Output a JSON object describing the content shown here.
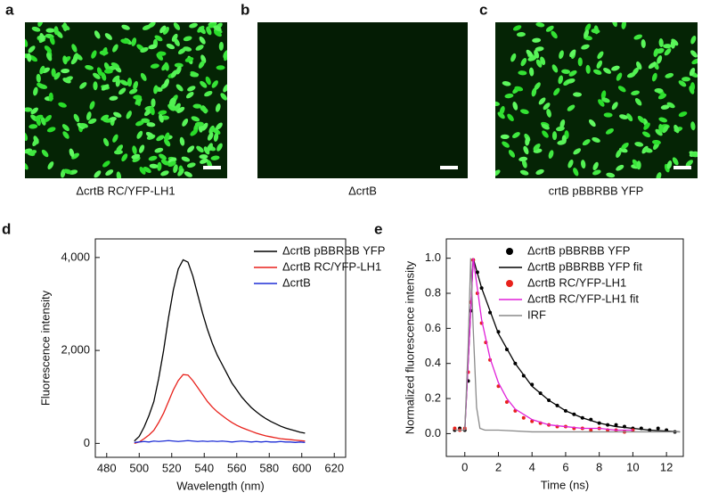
{
  "panels": [
    {
      "letter": "a",
      "caption": "ΔcrtB RC/YFP-LH1"
    },
    {
      "letter": "b",
      "caption": "ΔcrtB"
    },
    {
      "letter": "c",
      "caption": "crtB pBBRBB YFP"
    }
  ],
  "chart_data": [
    {
      "type": "line",
      "letter": "d",
      "xlabel": "Wavelength (nm)",
      "ylabel": "Fluorescence intensity",
      "xlim": [
        473,
        627
      ],
      "xticks": [
        480,
        500,
        520,
        540,
        560,
        580,
        600,
        620
      ],
      "ylim": [
        -300,
        4400
      ],
      "yticks": [
        0,
        {
          "value": 2000,
          "label": "2,000"
        },
        {
          "value": 4000,
          "label": "4,000"
        }
      ],
      "legend": "upper right",
      "x": [
        497,
        500,
        503,
        506,
        509,
        512,
        515,
        518,
        521,
        524,
        527,
        530,
        533,
        536,
        539,
        542,
        545,
        548,
        551,
        554,
        557,
        560,
        563,
        566,
        569,
        572,
        575,
        578,
        581,
        584,
        587,
        590,
        593,
        596,
        599,
        602
      ],
      "series": [
        {
          "name": "ΔcrtB pBBRBB YFP",
          "color": "#000000",
          "values": [
            50,
            150,
            350,
            600,
            900,
            1400,
            2000,
            2700,
            3300,
            3750,
            3950,
            3900,
            3600,
            3200,
            2800,
            2450,
            2150,
            1900,
            1700,
            1500,
            1300,
            1150,
            1000,
            880,
            770,
            680,
            600,
            530,
            470,
            420,
            370,
            330,
            300,
            270,
            240,
            220
          ]
        },
        {
          "name": "ΔcrtB RC/YFP-LH1",
          "color": "#e8211b",
          "values": [
            0,
            30,
            100,
            180,
            280,
            450,
            650,
            900,
            1150,
            1350,
            1480,
            1470,
            1350,
            1200,
            1050,
            900,
            780,
            680,
            600,
            520,
            450,
            390,
            340,
            300,
            260,
            220,
            190,
            160,
            140,
            120,
            100,
            90,
            80,
            70,
            60,
            50
          ]
        },
        {
          "name": "ΔcrtB",
          "color": "#1f2fd6",
          "values": [
            20,
            30,
            40,
            30,
            50,
            40,
            50,
            60,
            50,
            40,
            50,
            60,
            50,
            40,
            50,
            40,
            50,
            40,
            50,
            40,
            30,
            40,
            50,
            40,
            30,
            40,
            30,
            40,
            30,
            30,
            40,
            30,
            30,
            20,
            30,
            20
          ]
        }
      ]
    },
    {
      "type": "line",
      "letter": "e",
      "xlabel": "Time (ns)",
      "ylabel": "Normalized fluorescence intensity",
      "xlim": [
        -1.1,
        13.0
      ],
      "xticks": [
        0,
        2,
        4,
        6,
        8,
        10,
        12
      ],
      "ylim": [
        -0.13,
        1.11
      ],
      "yticks": [
        {
          "value": 0,
          "label": "0.0"
        },
        0.2,
        0.4,
        0.6,
        0.8,
        {
          "value": 1,
          "label": "1.0"
        }
      ],
      "legend": "upper right",
      "series": [
        {
          "name": "ΔcrtB pBBRBB YFP",
          "color": "#000000",
          "style": "markers",
          "x": [
            -0.6,
            -0.3,
            0,
            0.2,
            0.35,
            0.5,
            0.75,
            1,
            1.5,
            2,
            2.5,
            3,
            3.5,
            4,
            4.5,
            5,
            5.5,
            6,
            6.5,
            7,
            7.5,
            8,
            8.5,
            9,
            9.5,
            10,
            10.5,
            11,
            11.5,
            12,
            12.5
          ],
          "values": [
            0.02,
            0.03,
            0.02,
            0.3,
            0.7,
            0.99,
            0.92,
            0.83,
            0.69,
            0.58,
            0.48,
            0.4,
            0.33,
            0.28,
            0.23,
            0.19,
            0.16,
            0.13,
            0.11,
            0.09,
            0.08,
            0.06,
            0.05,
            0.05,
            0.04,
            0.03,
            0.03,
            0.02,
            0.03,
            0.02,
            0.01
          ]
        },
        {
          "name": "ΔcrtB pBBRBB YFP fit",
          "color": "#000000",
          "style": "line",
          "x": [
            0,
            0.3,
            0.5,
            1,
            2,
            3,
            4,
            5,
            6,
            7,
            8,
            9,
            10,
            11,
            12,
            12.8
          ],
          "values": [
            0.02,
            0.6,
            1.0,
            0.83,
            0.57,
            0.4,
            0.27,
            0.19,
            0.13,
            0.09,
            0.06,
            0.04,
            0.03,
            0.02,
            0.015,
            0.01
          ]
        },
        {
          "name": "ΔcrtB RC/YFP-LH1",
          "color": "#e8211b",
          "style": "markers",
          "x": [
            -0.6,
            -0.3,
            0,
            0.2,
            0.35,
            0.5,
            0.75,
            1,
            1.25,
            1.5,
            2,
            2.5,
            3,
            3.5,
            4,
            4.5,
            5,
            5.5,
            6,
            6.5,
            7,
            7.5,
            8,
            8.5,
            9,
            9.5,
            10
          ],
          "values": [
            0.03,
            0.02,
            0.03,
            0.35,
            0.75,
            0.99,
            0.8,
            0.63,
            0.52,
            0.42,
            0.27,
            0.18,
            0.13,
            0.09,
            0.07,
            0.06,
            0.05,
            0.04,
            0.04,
            0.03,
            0.03,
            0.02,
            0.03,
            0.02,
            0.02,
            0.01,
            0.02
          ]
        },
        {
          "name": "ΔcrtB RC/YFP-LH1 fit",
          "color": "#e020d8",
          "style": "line",
          "x": [
            0,
            0.3,
            0.5,
            1,
            1.5,
            2,
            2.5,
            3,
            4,
            5,
            6,
            7,
            8,
            9,
            10
          ],
          "values": [
            0.02,
            0.6,
            1.0,
            0.65,
            0.43,
            0.29,
            0.2,
            0.14,
            0.08,
            0.05,
            0.04,
            0.03,
            0.03,
            0.02,
            0.02
          ]
        },
        {
          "name": "IRF",
          "color": "#8a8a8a",
          "style": "line",
          "x": [
            -0.6,
            0,
            0.2,
            0.35,
            0.5,
            0.7,
            0.9,
            1.2,
            2,
            4,
            6,
            8,
            10,
            12,
            12.8
          ],
          "values": [
            0.02,
            0.02,
            0.5,
            1.0,
            0.6,
            0.15,
            0.03,
            0.02,
            0.02,
            0.01,
            0.01,
            0.01,
            0.01,
            0.01,
            0.01
          ]
        }
      ]
    }
  ]
}
